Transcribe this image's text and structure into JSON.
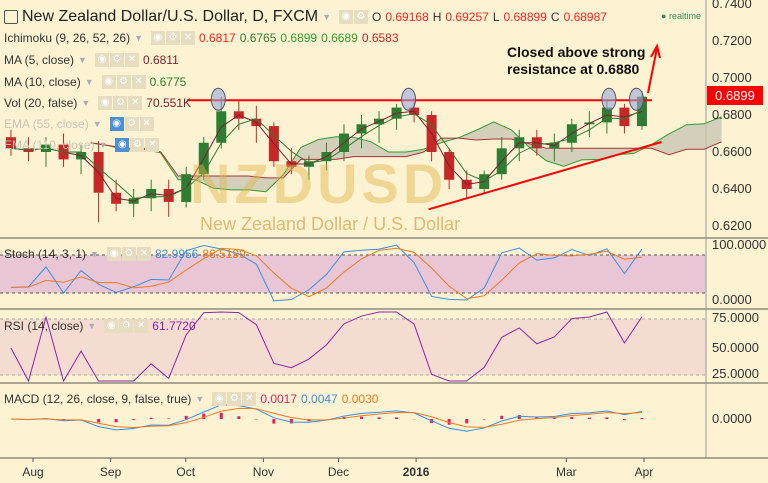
{
  "header": {
    "title": "New Zealand Dollar/U.S. Dollar, D, FXCM",
    "o_label": "O",
    "o": "0.69168",
    "h_label": "H",
    "h": "0.69257",
    "l_label": "L",
    "l": "0.68899",
    "c_label": "C",
    "c": "0.68987",
    "realtime": "realtime"
  },
  "watermark": {
    "symbol": "NZDUSD",
    "name": "New Zealand Dollar / U.S. Dollar"
  },
  "indicators": [
    {
      "name": "Ichimoku (9, 26, 52, 26)",
      "values": [
        "0.6817",
        "0.6765",
        "0.6899",
        "0.6689",
        "0.6583"
      ],
      "colors": [
        "#ff2020",
        "#2e7d32",
        "#2e9e2e",
        "#2e9e2e",
        "#c62828"
      ]
    },
    {
      "name": "MA (5, close)",
      "values": [
        "0.6811"
      ],
      "colors": [
        "#7b1f2f"
      ]
    },
    {
      "name": "MA (10, close)",
      "values": [
        "0.6775"
      ],
      "colors": [
        "#2e7d32"
      ]
    },
    {
      "name": "Vol (20, false)",
      "values": [
        "70.551K"
      ],
      "colors": [
        "#7b1f2f"
      ]
    },
    {
      "name": "EMA (55, close)",
      "values": [],
      "hidden": true
    },
    {
      "name": "EMA (110, close)",
      "values": [],
      "hidden": true
    }
  ],
  "panes": {
    "stoch": {
      "name": "Stoch (14, 3, 1)",
      "values": [
        "82.9956",
        "86.5199"
      ],
      "colors": [
        "#3a8ee6",
        "#f07a20"
      ],
      "axis": [
        "100.0000",
        "0.0000"
      ]
    },
    "rsi": {
      "name": "RSI (14, close)",
      "values": [
        "61.7720"
      ],
      "colors": [
        "#8e24aa"
      ],
      "axis": [
        "75.0000",
        "50.0000",
        "25.0000"
      ]
    },
    "macd": {
      "name": "MACD (12, 26, close, 9, false, true)",
      "values": [
        "0.0017",
        "0.0047",
        "0.0030"
      ],
      "colors": [
        "#e91e63",
        "#3a8ee6",
        "#f07a20"
      ],
      "axis": [
        "0.0000"
      ]
    }
  },
  "price_axis": [
    "0.7400",
    "0.7200",
    "0.7000",
    "0.6800",
    "0.6600",
    "0.6400",
    "0.6200"
  ],
  "last_price": "0.6899",
  "annotation": {
    "line1": "Closed above strong",
    "line2": "resistance at 0.6880",
    "resistance": 0.688
  },
  "time_axis": [
    {
      "label": "Aug",
      "date": "2015-08-01"
    },
    {
      "label": "Sep",
      "date": "2015-09-01"
    },
    {
      "label": "Oct",
      "date": "2015-10-01"
    },
    {
      "label": "Nov",
      "date": "2015-11-01"
    },
    {
      "label": "Dec",
      "date": "2015-12-01"
    },
    {
      "label": "2016",
      "date": "2016-01-01",
      "bold": true
    },
    {
      "label": "Mar",
      "date": "2016-03-01"
    },
    {
      "label": "Apr",
      "date": "2016-04-01"
    }
  ],
  "chart_data": {
    "type": "candlestick",
    "symbol": "NZDUSD",
    "interval_note": "approximate weekly OHLC read from daily chart",
    "ylim": [
      0.615,
      0.742
    ],
    "xlim": [
      "2015-07-18",
      "2016-04-25"
    ],
    "colors": {
      "up": "#2e7d32",
      "down": "#c62828",
      "resistance": "#ff0000",
      "cloud": "#c8c6b4",
      "background": "#fdf3d2"
    },
    "trendline": {
      "from": [
        "2016-01-06",
        0.629
      ],
      "to": [
        "2016-04-08",
        0.6654
      ]
    },
    "resistance_touches": [
      "2015-10-14",
      "2015-12-29",
      "2016-03-18",
      "2016-03-29"
    ],
    "ohlc": [
      [
        "2015-07-20",
        0.668,
        0.672,
        0.658,
        0.662
      ],
      [
        "2015-07-27",
        0.662,
        0.668,
        0.655,
        0.66
      ],
      [
        "2015-08-03",
        0.66,
        0.668,
        0.652,
        0.664
      ],
      [
        "2015-08-10",
        0.664,
        0.67,
        0.652,
        0.656
      ],
      [
        "2015-08-17",
        0.656,
        0.664,
        0.648,
        0.66
      ],
      [
        "2015-08-24",
        0.66,
        0.666,
        0.622,
        0.638
      ],
      [
        "2015-08-31",
        0.638,
        0.645,
        0.628,
        0.632
      ],
      [
        "2015-09-07",
        0.632,
        0.64,
        0.625,
        0.635
      ],
      [
        "2015-09-14",
        0.635,
        0.645,
        0.628,
        0.64
      ],
      [
        "2015-09-21",
        0.64,
        0.645,
        0.625,
        0.633
      ],
      [
        "2015-09-28",
        0.633,
        0.652,
        0.63,
        0.648
      ],
      [
        "2015-10-05",
        0.648,
        0.668,
        0.645,
        0.665
      ],
      [
        "2015-10-12",
        0.665,
        0.69,
        0.662,
        0.682
      ],
      [
        "2015-10-19",
        0.682,
        0.688,
        0.672,
        0.678
      ],
      [
        "2015-10-26",
        0.678,
        0.685,
        0.665,
        0.674
      ],
      [
        "2015-11-02",
        0.674,
        0.676,
        0.652,
        0.655
      ],
      [
        "2015-11-09",
        0.655,
        0.662,
        0.648,
        0.652
      ],
      [
        "2015-11-16",
        0.652,
        0.658,
        0.645,
        0.655
      ],
      [
        "2015-11-23",
        0.655,
        0.665,
        0.65,
        0.66
      ],
      [
        "2015-11-30",
        0.66,
        0.675,
        0.655,
        0.67
      ],
      [
        "2015-12-07",
        0.67,
        0.68,
        0.662,
        0.675
      ],
      [
        "2015-12-14",
        0.675,
        0.682,
        0.665,
        0.678
      ],
      [
        "2015-12-21",
        0.678,
        0.686,
        0.672,
        0.684
      ],
      [
        "2015-12-28",
        0.684,
        0.689,
        0.676,
        0.68
      ],
      [
        "2016-01-04",
        0.68,
        0.682,
        0.655,
        0.66
      ],
      [
        "2016-01-11",
        0.66,
        0.662,
        0.64,
        0.645
      ],
      [
        "2016-01-18",
        0.645,
        0.65,
        0.635,
        0.64
      ],
      [
        "2016-01-25",
        0.64,
        0.65,
        0.638,
        0.648
      ],
      [
        "2016-02-01",
        0.648,
        0.668,
        0.645,
        0.662
      ],
      [
        "2016-02-08",
        0.662,
        0.672,
        0.655,
        0.668
      ],
      [
        "2016-02-15",
        0.668,
        0.672,
        0.658,
        0.662
      ],
      [
        "2016-02-22",
        0.662,
        0.67,
        0.655,
        0.665
      ],
      [
        "2016-02-29",
        0.665,
        0.678,
        0.66,
        0.675
      ],
      [
        "2016-03-07",
        0.675,
        0.682,
        0.668,
        0.676
      ],
      [
        "2016-03-14",
        0.676,
        0.688,
        0.67,
        0.684
      ],
      [
        "2016-03-21",
        0.684,
        0.686,
        0.67,
        0.674
      ],
      [
        "2016-03-28",
        0.674,
        0.693,
        0.672,
        0.6899
      ]
    ]
  }
}
